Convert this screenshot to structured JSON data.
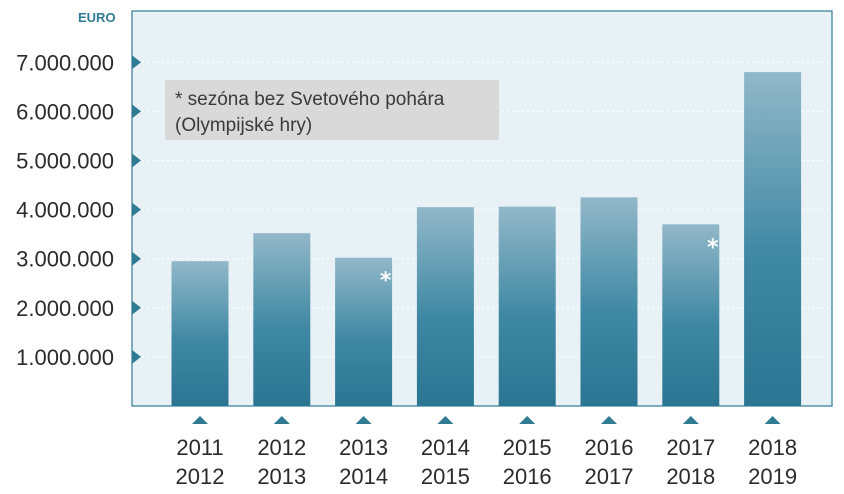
{
  "colors": {
    "plot_background": "#e8f2f6",
    "plot_border": "#2f7b94",
    "bar_top": "#92b8c9",
    "bar_bottom": "#2a7592",
    "marker": "#2f7b94",
    "note_background": "#d9d9d9"
  },
  "chart_data": {
    "type": "bar",
    "unit": "EURO",
    "categories": [
      [
        "2011",
        "2012"
      ],
      [
        "2012",
        "2013"
      ],
      [
        "2013",
        "2014"
      ],
      [
        "2014",
        "2015"
      ],
      [
        "2015",
        "2016"
      ],
      [
        "2016",
        "2017"
      ],
      [
        "2017",
        "2018"
      ],
      [
        "2018",
        "2019"
      ]
    ],
    "values": [
      2950000,
      3520000,
      3020000,
      4050000,
      4060000,
      4250000,
      3700000,
      6800000
    ],
    "starred": [
      false,
      false,
      true,
      false,
      false,
      false,
      true,
      false
    ],
    "star_symbol": "*",
    "yticks": [
      1000000,
      2000000,
      3000000,
      4000000,
      5000000,
      6000000,
      7000000
    ],
    "ytick_labels": [
      "1.000.000",
      "2.000.000",
      "3.000.000",
      "4.000.000",
      "5.000.000",
      "6.000.000",
      "7.000.000"
    ],
    "ylim": [
      0,
      8000000
    ],
    "grid": true,
    "note": {
      "lines": [
        "* sezóna bez Svetového pohára",
        "(Olympijské hry)"
      ]
    }
  }
}
